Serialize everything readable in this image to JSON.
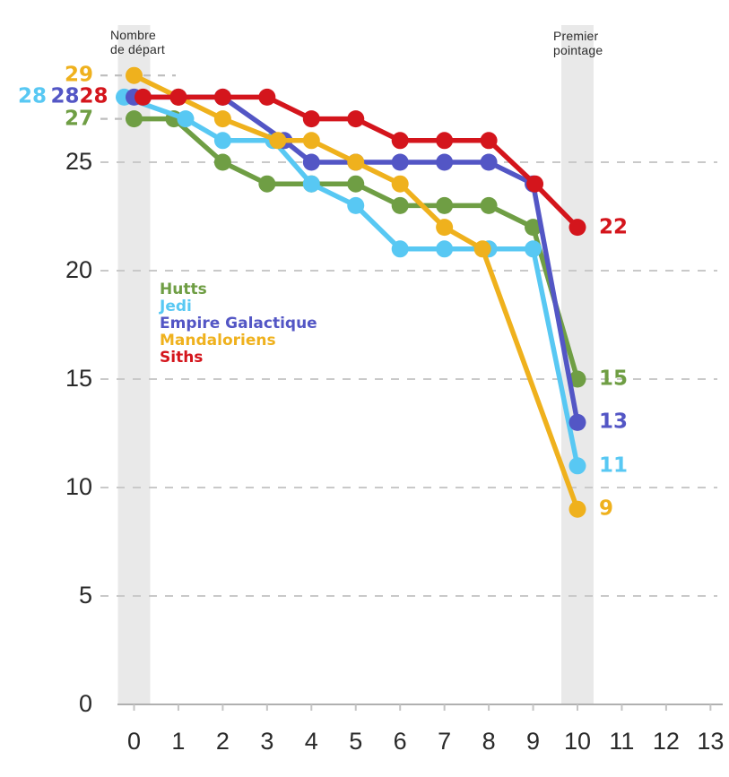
{
  "annotations": {
    "start_marker": {
      "line1": "Nombre",
      "line2": "de départ"
    },
    "end_marker": {
      "line1": "Premier",
      "line2": "pointage"
    }
  },
  "legend": {
    "items": [
      "Hutts",
      "Jedi",
      "Empire Galactique",
      "Mandaloriens",
      "Siths"
    ]
  },
  "chart_data": {
    "type": "line",
    "title": "",
    "xlabel": "",
    "ylabel": "",
    "x_tick_labels": [
      "0",
      "1",
      "2",
      "3",
      "4",
      "5",
      "6",
      "7",
      "8",
      "9",
      "10",
      "11",
      "12",
      "13"
    ],
    "x_ticks": [
      0,
      1,
      2,
      3,
      4,
      5,
      6,
      7,
      8,
      9,
      10,
      11,
      12,
      13
    ],
    "y_tick_labels": [
      "0",
      "5",
      "10",
      "15",
      "20",
      "25"
    ],
    "y_ticks": [
      0,
      5,
      10,
      15,
      20,
      25
    ],
    "xlim": [
      0,
      13
    ],
    "ylim": [
      0,
      30
    ],
    "grid": "horizontal-dashed",
    "legend_position": "inside-left-middle",
    "highlight_bands_x": [
      0,
      10
    ],
    "x_data": [
      0,
      1,
      2,
      3,
      4,
      5,
      6,
      7,
      8,
      9,
      10
    ],
    "series": [
      {
        "name": "Hutts",
        "color": "#6f9e44",
        "values": [
          27,
          27,
          25,
          24,
          24,
          24,
          23,
          23,
          23,
          22,
          15
        ],
        "start_label": "27",
        "end_label": "15"
      },
      {
        "name": "Jedi",
        "color": "#58c8f3",
        "values": [
          28,
          27,
          26,
          26,
          24,
          23,
          21,
          21,
          21,
          21,
          11
        ],
        "start_label": "28",
        "end_label": "11"
      },
      {
        "name": "Empire Galactique",
        "color": "#5356c5",
        "values": [
          28,
          28,
          28,
          26,
          25,
          25,
          25,
          25,
          25,
          24,
          13
        ],
        "start_label": "28",
        "end_label": "13"
      },
      {
        "name": "Mandaloriens",
        "color": "#efb11d",
        "values": [
          29,
          28,
          27,
          26,
          26,
          25,
          24,
          22,
          21,
          null,
          9
        ],
        "start_label": "29",
        "end_label": "9"
      },
      {
        "name": "Siths",
        "color": "#d4151c",
        "values": [
          28,
          28,
          28,
          28,
          27,
          27,
          26,
          26,
          26,
          24,
          22
        ],
        "start_label": "28",
        "end_label": "22"
      }
    ],
    "colors": {
      "band": "#e9e9e9",
      "gridline": "#c9c9c9",
      "baseline": "#b0b0b0",
      "axis_text": "#2a2a2a",
      "annotation_text": "#2d2d2d"
    }
  }
}
